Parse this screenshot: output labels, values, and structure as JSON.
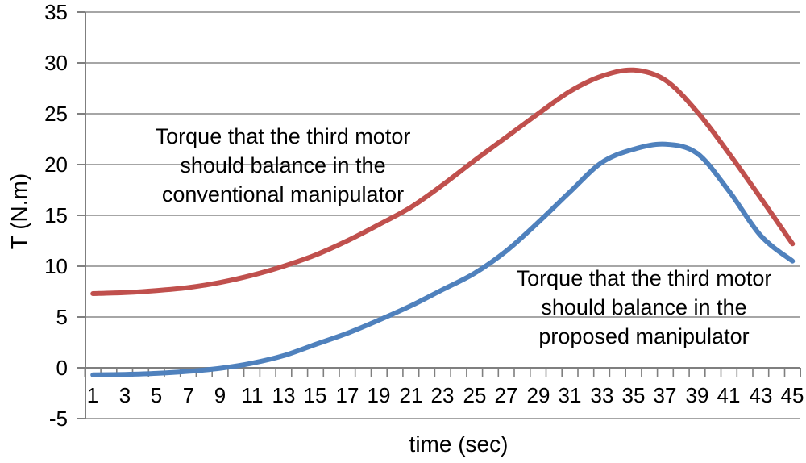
{
  "chart_data": {
    "type": "line",
    "title": "",
    "xlabel": "time (sec)",
    "ylabel": "T (N.m)",
    "x": [
      1,
      3,
      5,
      7,
      9,
      11,
      13,
      15,
      17,
      19,
      21,
      23,
      25,
      27,
      29,
      31,
      33,
      35,
      37,
      39,
      41,
      43,
      45
    ],
    "series": [
      {
        "name": "Torque that the third motor should balance in the conventional manipulator",
        "color": "#C0504D",
        "values": [
          7.3,
          7.4,
          7.6,
          7.9,
          8.4,
          9.1,
          10.0,
          11.1,
          12.5,
          14.1,
          15.8,
          18.0,
          20.4,
          22.7,
          25.0,
          27.2,
          28.7,
          29.3,
          28.3,
          25.2,
          21.1,
          16.7,
          12.2
        ]
      },
      {
        "name": "Torque that the third motor should balance in the proposed manipulator",
        "color": "#4F81BD",
        "values": [
          -0.7,
          -0.65,
          -0.55,
          -0.35,
          -0.05,
          0.45,
          1.2,
          2.3,
          3.4,
          4.7,
          6.1,
          7.7,
          9.3,
          11.5,
          14.3,
          17.3,
          20.2,
          21.5,
          22.0,
          21.1,
          17.4,
          13.0,
          10.5
        ]
      }
    ],
    "ylim": [
      -5,
      35
    ],
    "yticks": [
      -5,
      0,
      5,
      10,
      15,
      20,
      25,
      30,
      35
    ],
    "xtick_labels": [
      1,
      3,
      5,
      7,
      9,
      11,
      13,
      15,
      17,
      19,
      21,
      23,
      25,
      27,
      29,
      31,
      33,
      35,
      37,
      39,
      41,
      43,
      45
    ],
    "x_minor_ticks_every": 1,
    "grid": "horizontal",
    "legend_position": "none"
  },
  "axes": {
    "x_title": "time (sec)",
    "y_title": "T (N.m)"
  },
  "annotations": {
    "conventional": {
      "lines": [
        "Torque that the third motor",
        "should balance in the",
        "conventional manipulator"
      ]
    },
    "proposed": {
      "lines": [
        "Torque that the third motor",
        "should balance in the",
        "proposed manipulator"
      ]
    }
  },
  "colors": {
    "conventional_line": "#C0504D",
    "proposed_line": "#4F81BD",
    "gridline": "#898989",
    "axis_line": "#7F7F7F",
    "text": "#000000",
    "background": "#FFFFFF"
  }
}
